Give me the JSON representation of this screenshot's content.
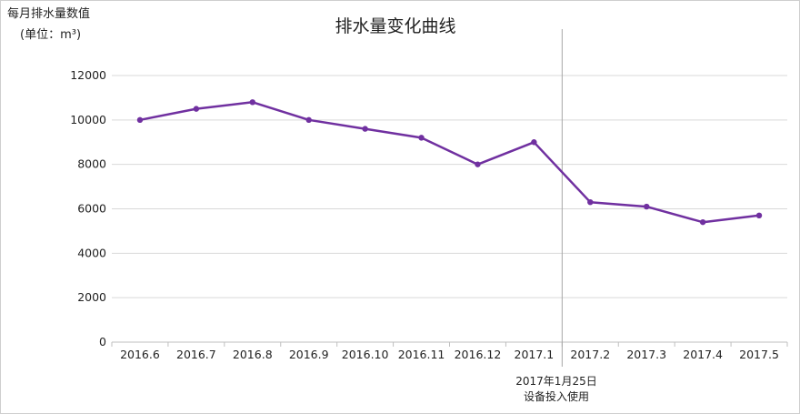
{
  "chart_data": {
    "type": "line",
    "title": "排水量变化曲线",
    "ylabel_line1": "每月排水量数值",
    "ylabel_line2": "(单位：m³)",
    "categories": [
      "2016.6",
      "2016.7",
      "2016.8",
      "2016.9",
      "2016.10",
      "2016.11",
      "2016.12",
      "2017.1",
      "2017.2",
      "2017.3",
      "2017.4",
      "2017.5"
    ],
    "series": [
      {
        "values": [
          10000,
          10500,
          10800,
          10000,
          9600,
          9200,
          8000,
          9000,
          6300,
          6100,
          5400,
          5700
        ]
      }
    ],
    "ylim": [
      0,
      12000
    ],
    "yticks": [
      0,
      2000,
      4000,
      6000,
      8000,
      10000,
      12000
    ],
    "grid": true,
    "line_color": "#7030a0",
    "marker_line_after_category": "2017.1",
    "annotation_line1": "2017年1月25日",
    "annotation_line2": "设备投入使用"
  }
}
